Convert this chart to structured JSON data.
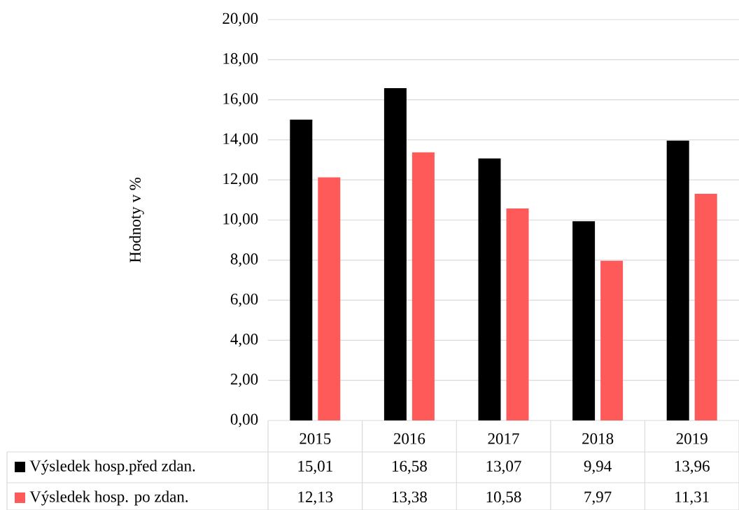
{
  "chart_data": {
    "type": "bar",
    "ylabel": "Hodnoty v %",
    "categories": [
      "2015",
      "2016",
      "2017",
      "2018",
      "2019"
    ],
    "series": [
      {
        "name": "Výsledek hosp.před zdan.",
        "color": "#000000",
        "values": [
          15.01,
          16.58,
          13.07,
          9.94,
          13.96
        ],
        "value_labels": [
          "15,01",
          "16,58",
          "13,07",
          "9,94",
          "13,96"
        ]
      },
      {
        "name": "Výsledek hosp. po zdan.",
        "color": "#ff5a5a",
        "values": [
          12.13,
          13.38,
          10.58,
          7.97,
          11.31
        ],
        "value_labels": [
          "12,13",
          "13,38",
          "10,58",
          "7,97",
          "11,31"
        ]
      }
    ],
    "ylim": [
      0,
      20
    ],
    "yticks": [
      {
        "value": 0,
        "label": "0,00"
      },
      {
        "value": 2,
        "label": "2,00"
      },
      {
        "value": 4,
        "label": "4,00"
      },
      {
        "value": 6,
        "label": "6,00"
      },
      {
        "value": 8,
        "label": "8,00"
      },
      {
        "value": 10,
        "label": "10,00"
      },
      {
        "value": 12,
        "label": "12,00"
      },
      {
        "value": 14,
        "label": "14,00"
      },
      {
        "value": 16,
        "label": "16,00"
      },
      {
        "value": 18,
        "label": "18,00"
      },
      {
        "value": 20,
        "label": "20,00"
      }
    ],
    "grid": "y",
    "legend": "bottom"
  }
}
